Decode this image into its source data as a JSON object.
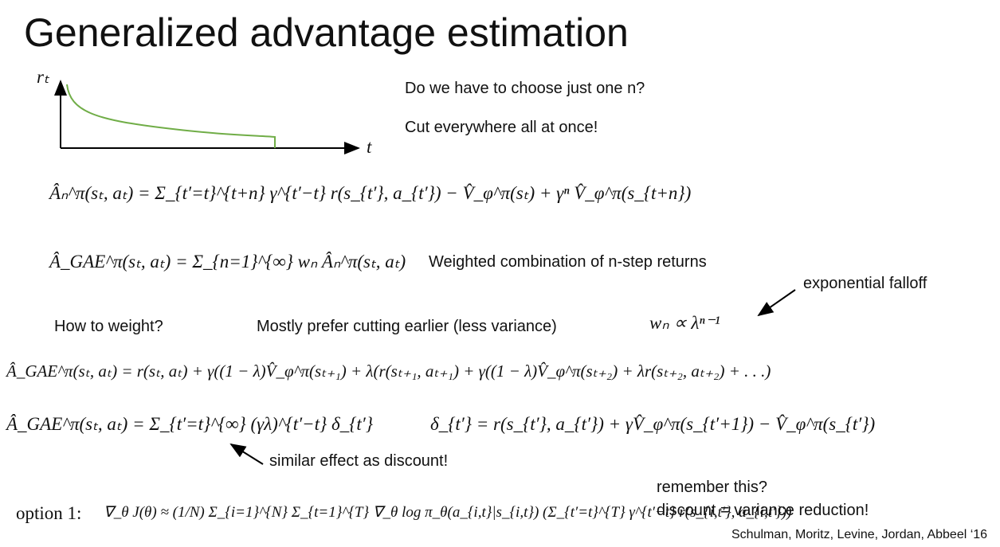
{
  "title": "Generalized advantage estimation",
  "plot": {
    "y_label": "rₜ",
    "x_label": "t"
  },
  "notes": [
    "Do we have to choose just one n?",
    "Cut everywhere all at once!"
  ],
  "equations": {
    "n_step": "Âₙ^π(sₜ, aₜ) = Σ_{t′=t}^{t+n} γ^{t′−t} r(s_{t′}, a_{t′}) − V̂_φ^π(sₜ) + γⁿ V̂_φ^π(s_{t+n})",
    "gae_sum": "Â_GAE^π(sₜ, aₜ) = Σ_{n=1}^{∞} wₙ Âₙ^π(sₜ, aₜ)",
    "weight": "wₙ ∝ λⁿ⁻¹",
    "gae_expanded": "Â_GAE^π(sₜ, aₜ) = r(sₜ, aₜ) + γ((1 − λ)V̂_φ^π(sₜ₊₁) + λ(r(sₜ₊₁, aₜ₊₁) + γ((1 − λ)V̂_φ^π(sₜ₊₂) + λr(sₜ₊₂, aₜ₊₂) + . . .)",
    "gae_delta": "Â_GAE^π(sₜ, aₜ) = Σ_{t′=t}^{∞} (γλ)^{t′−t} δ_{t′}",
    "delta": "δ_{t′} = r(s_{t′}, a_{t′}) + γV̂_φ^π(s_{t′+1}) − V̂_φ^π(s_{t′})",
    "option_label": "option 1:",
    "option": "∇_θ J(θ) ≈ (1/N) Σ_{i=1}^{N} Σ_{t=1}^{T} ∇_θ log π_θ(a_{i,t}|s_{i,t}) (Σ_{t′=t}^{T} γ^{t′−t} r(s_{i,t′}, a_{i,t′}))"
  },
  "labels": {
    "weighted": "Weighted combination of n-step returns",
    "falloff": "exponential falloff",
    "how": "How to weight?",
    "prefer": "Mostly prefer cutting earlier (less variance)",
    "similar": "similar effect as discount!",
    "remember": "remember this?",
    "discount": "discount = variance reduction!",
    "citation": "Schulman, Moritz, Levine, Jordan, Abbeel ‘16"
  }
}
